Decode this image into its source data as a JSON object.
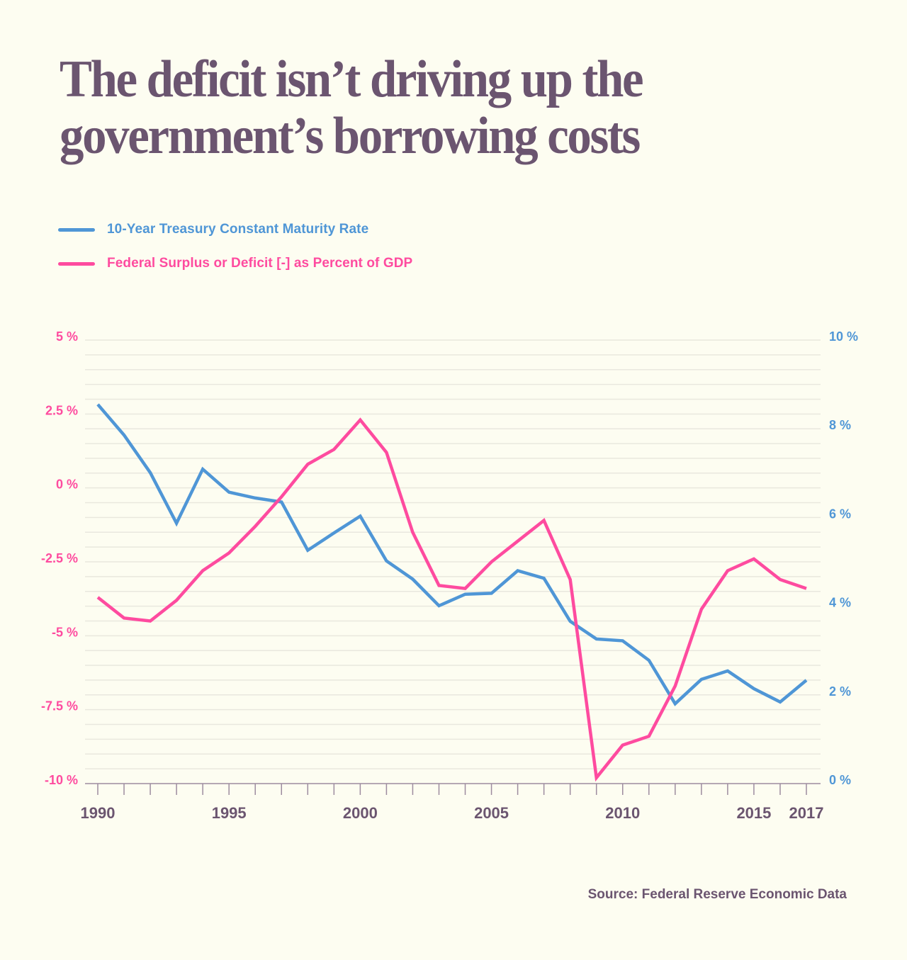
{
  "title": "The deficit isn’t driving up the government’s borrowing costs",
  "colors": {
    "background": "#fdfdf1",
    "title": "#6b5570",
    "treasury": "#4f96d6",
    "deficit": "#fe4b9f",
    "grid": "#e9e8de",
    "axis": "#9d8c9f"
  },
  "legend": [
    {
      "key": "treasury",
      "label": "10-Year Treasury Constant Maturity Rate",
      "color": "#4f96d6"
    },
    {
      "key": "deficit",
      "label": "Federal Surplus or Deficit [-] as Percent of GDP",
      "color": "#fe4b9f"
    }
  ],
  "source": "Source: Federal Reserve Economic Data",
  "chart_data": {
    "type": "line",
    "title": "The deficit isn’t driving up the government’s borrowing costs",
    "xlabel": "",
    "x": [
      1990,
      1991,
      1992,
      1993,
      1994,
      1995,
      1996,
      1997,
      1998,
      1999,
      2000,
      2001,
      2002,
      2003,
      2004,
      2005,
      2006,
      2007,
      2008,
      2009,
      2010,
      2011,
      2012,
      2013,
      2014,
      2015,
      2016,
      2017
    ],
    "x_tick_labels": [
      "1990",
      "1995",
      "2000",
      "2005",
      "2010",
      "2015",
      "2017"
    ],
    "x_tick_values": [
      1990,
      1995,
      2000,
      2005,
      2010,
      2015,
      2017
    ],
    "xlim": [
      1990,
      2017
    ],
    "series": [
      {
        "name": "10-Year Treasury Constant Maturity Rate",
        "axis": "right",
        "color": "#4f96d6",
        "values": [
          8.55,
          7.86,
          7.01,
          5.87,
          7.09,
          6.57,
          6.44,
          6.35,
          5.26,
          5.65,
          6.03,
          5.02,
          4.61,
          4.01,
          4.27,
          4.29,
          4.8,
          4.63,
          3.66,
          3.26,
          3.22,
          2.78,
          1.8,
          2.35,
          2.54,
          2.14,
          1.84,
          2.33
        ]
      },
      {
        "name": "Federal Surplus or Deficit [-] as Percent of GDP",
        "axis": "left",
        "color": "#fe4b9f",
        "values": [
          -3.7,
          -4.4,
          -4.5,
          -3.8,
          -2.8,
          -2.2,
          -1.3,
          -0.3,
          0.8,
          1.3,
          2.3,
          1.2,
          -1.5,
          -3.3,
          -3.4,
          -2.5,
          -1.8,
          -1.1,
          -3.1,
          -9.8,
          -8.7,
          -8.4,
          -6.7,
          -4.1,
          -2.8,
          -2.4,
          -3.1,
          -3.4
        ]
      }
    ],
    "y_left": {
      "ylim": [
        -10,
        5
      ],
      "ticks": [
        5,
        2.5,
        0,
        -2.5,
        -5,
        -7.5,
        -10
      ],
      "tick_labels": [
        "5 %",
        "2.5 %",
        "0 %",
        "-2.5 %",
        "-5 %",
        "-7.5 %",
        "-10 %"
      ],
      "color": "#fe4b9f"
    },
    "y_right": {
      "ylim": [
        0,
        10
      ],
      "ticks": [
        10,
        8,
        6,
        4,
        2,
        0
      ],
      "tick_labels": [
        "10 %",
        "8 %",
        "6 %",
        "4 %",
        "2 %",
        "0 %"
      ],
      "color": "#4f96d6"
    },
    "grid": true,
    "grid_step_left": 0.5,
    "legend_position": "top-left"
  }
}
